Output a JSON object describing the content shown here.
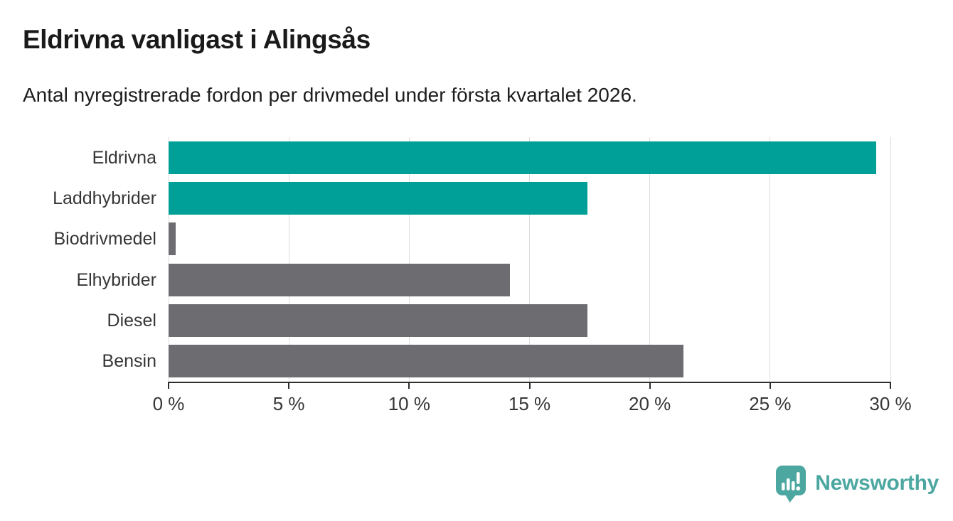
{
  "header": {
    "title": "Eldrivna vanligast i Alingsås",
    "subtitle": "Antal nyregistrerade fordon per drivmedel under första kvartalet 2026."
  },
  "chart_data": {
    "type": "bar",
    "orientation": "horizontal",
    "title": "Eldrivna vanligast i Alingsås",
    "subtitle": "Antal nyregistrerade fordon per drivmedel under första kvartalet 2026.",
    "categories": [
      "Eldrivna",
      "Laddhybrider",
      "Biodrivmedel",
      "Elhybrider",
      "Diesel",
      "Bensin"
    ],
    "values": [
      29.4,
      17.4,
      0.3,
      14.2,
      17.4,
      21.4
    ],
    "unit": "%",
    "bar_colors": [
      "#00a098",
      "#00a098",
      "#6d6c71",
      "#6d6c71",
      "#6d6c71",
      "#6d6c71"
    ],
    "highlight_color": "#00a098",
    "default_color": "#6d6c71",
    "xlim": [
      0,
      30
    ],
    "x_ticks": [
      0,
      5,
      10,
      15,
      20,
      25,
      30
    ],
    "x_tick_labels": [
      "0 %",
      "5 %",
      "10 %",
      "15 %",
      "20 %",
      "25 %",
      "30 %"
    ],
    "grid": true,
    "gridline_color": "#dcdcdc",
    "axis_color": "#2e2e2e",
    "label_color": "#363636",
    "xlabel": "",
    "ylabel": "",
    "legend": "none"
  },
  "branding": {
    "logo_text": "Newsworthy",
    "logo_color": "#4da7a1"
  }
}
